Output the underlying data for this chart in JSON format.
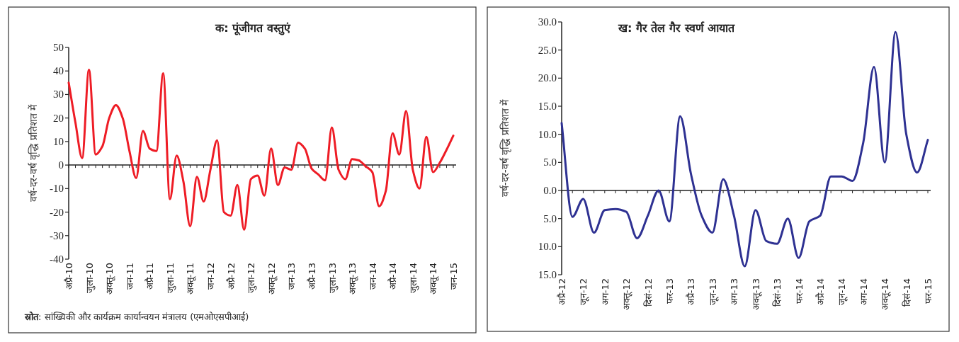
{
  "chart_data": [
    {
      "type": "line",
      "title": "क: पूंजीगत वस्तुएं",
      "ylabel": "वर्ष-दर-वर्ष वृद्धि प्रतिशत में",
      "categories": [
        "अप्रै-10",
        null,
        null,
        "जुला-10",
        null,
        null,
        "अक्तू-10",
        null,
        null,
        "जन-11",
        null,
        null,
        "अप्रै-11",
        null,
        null,
        "जुला-11",
        null,
        null,
        "अक्तू-11",
        null,
        null,
        "जन-12",
        null,
        null,
        "अप्रै-12",
        null,
        null,
        "जुला-12",
        null,
        null,
        "अक्तू-12",
        null,
        null,
        "जन-13",
        null,
        null,
        "अप्रै-13",
        null,
        null,
        "जुला-13",
        null,
        null,
        "अक्तू-13",
        null,
        null,
        "जन-14",
        null,
        null,
        "अप्रै-14",
        null,
        null,
        "जुला-14",
        null,
        null,
        "अक्तू-14",
        null,
        null,
        "जन-15"
      ],
      "series": [
        {
          "color": "#ee1c25",
          "values": [
            35,
            18,
            3,
            40.5,
            4.5,
            8,
            20,
            25.5,
            20,
            6,
            -5.5,
            14.5,
            7,
            6,
            39,
            -14.5,
            4,
            -7,
            -26,
            -5,
            -15.5,
            -2,
            10.5,
            -20,
            -21.5,
            -8.5,
            -27.5,
            -6,
            -4.5,
            -13,
            7,
            -8.5,
            -1,
            -2,
            9.5,
            7,
            -1.5,
            -4,
            -6.5,
            16,
            -2,
            -6,
            2.5,
            2,
            -0.5,
            -3,
            -17.5,
            -11,
            13.5,
            4.5,
            23,
            -2,
            -10,
            12,
            -3,
            1,
            6.5,
            12.5
          ]
        }
      ],
      "ylim": [
        -40,
        50
      ],
      "yticks": [
        -40,
        -30,
        -20,
        -10,
        0,
        10,
        20,
        30,
        40,
        50
      ],
      "annotations": [
        "**स्रोत**: सांख्यिकी और कार्यक्रम कार्यान्वयन मंत्रालय (एमओएसपीआई)"
      ]
    },
    {
      "type": "line",
      "title": "ख: गैर तेल गैर स्वर्ण आयात",
      "ylabel": "वर्ष-दर-वर्ष वृद्धि प्रतिशत में",
      "categories": [
        "अप्रै-12",
        null,
        "जून-12",
        null,
        "अग-12",
        null,
        "अक्तू-12",
        null,
        "दिसं-12",
        null,
        "फर-13",
        null,
        "अप्रै-13",
        null,
        "जून-13",
        null,
        "अग-13",
        null,
        "अक्तू-13",
        null,
        "दिसं-13",
        null,
        "फर-14",
        null,
        "अप्रै-14",
        null,
        "जून-14",
        null,
        "अग-14",
        null,
        "अक्तू-14",
        null,
        "दिसं-14",
        null,
        "फर-15"
      ],
      "series": [
        {
          "color": "#2e3192",
          "values": [
            12,
            -4.7,
            -1.5,
            -7.5,
            -3.5,
            -3.3,
            -3.8,
            -8.5,
            -4.5,
            0,
            -5.5,
            13.2,
            3,
            -4.5,
            -7.5,
            2,
            -4.5,
            -13.5,
            -3.5,
            -9,
            -9.5,
            -5,
            -12,
            -5.5,
            -4.5,
            2.5,
            2.5,
            1.7,
            8.5,
            22,
            5,
            28.2,
            10,
            3.2,
            9
          ]
        }
      ],
      "ylim": [
        -15,
        30
      ],
      "yticks": [
        {
          "value": -15,
          "label": "15.0"
        },
        {
          "value": -10,
          "label": "10.0"
        },
        {
          "value": -5,
          "label": "5.0"
        },
        {
          "value": 0,
          "label": "0.0"
        },
        {
          "value": 5,
          "label": "5.0"
        },
        {
          "value": 10,
          "label": "10.0"
        },
        {
          "value": 15,
          "label": "15.0"
        },
        {
          "value": 20,
          "label": "20.0"
        },
        {
          "value": 25,
          "label": "25.0"
        },
        {
          "value": 30,
          "label": "30.0"
        }
      ]
    }
  ]
}
